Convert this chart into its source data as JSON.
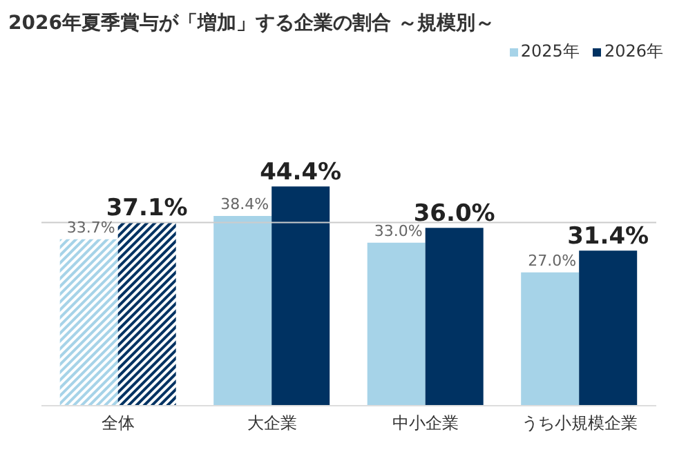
{
  "chart_data": {
    "type": "bar",
    "title": "2026年夏季賞与が「増加」する企業の割合 ～規模別～",
    "categories": [
      "全体",
      "大企業",
      "中小企業",
      "うち小規模企業"
    ],
    "series": [
      {
        "name": "2025年",
        "color": "#a6d3e8",
        "values": [
          33.7,
          38.4,
          33.0,
          27.0
        ],
        "value_labels": [
          "33.7%",
          "38.4%",
          "33.0%",
          "27.0%"
        ]
      },
      {
        "name": "2026年",
        "color": "#003262",
        "values": [
          37.1,
          44.4,
          36.0,
          31.4
        ],
        "value_labels": [
          "37.1%",
          "44.4%",
          "36.0%",
          "31.4%"
        ]
      }
    ],
    "ref_lines": [
      {
        "axis": "y",
        "value": 37.1,
        "color": "#cccccc"
      }
    ],
    "legend": "top right"
  }
}
